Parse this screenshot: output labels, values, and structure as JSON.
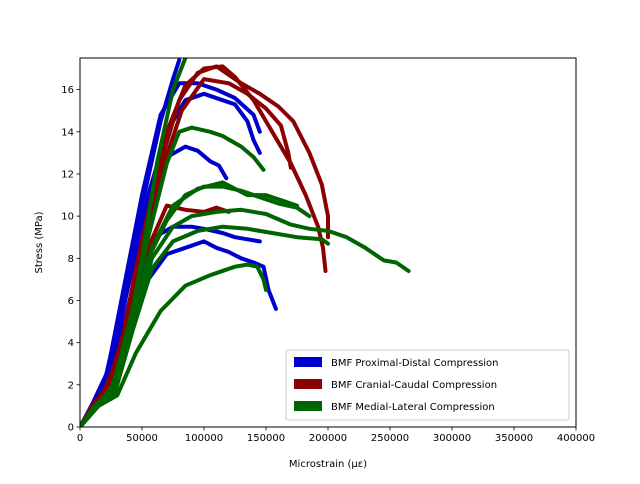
{
  "chart_data": {
    "type": "line",
    "title": "",
    "xlabel": "Microstrain (με)",
    "ylabel": "Stress (MPa)",
    "xlim": [
      0,
      400000
    ],
    "ylim": [
      0,
      17.5
    ],
    "x_ticks": [
      0,
      50000,
      100000,
      150000,
      200000,
      250000,
      300000,
      350000,
      400000
    ],
    "y_ticks": [
      0,
      2,
      4,
      6,
      8,
      10,
      12,
      14,
      16
    ],
    "grid": false,
    "legend_position": "lower-right",
    "groups": [
      {
        "name": "BMF Proximal-Distal Compression",
        "color": "#0000cd",
        "curves": [
          [
            [
              0,
              0
            ],
            [
              10000,
              1.0
            ],
            [
              20000,
              2.2
            ],
            [
              35000,
              6
            ],
            [
              50000,
              10.5
            ],
            [
              65000,
              14.5
            ],
            [
              75000,
              16.5
            ],
            [
              80000,
              17.4
            ]
          ],
          [
            [
              0,
              0
            ],
            [
              10000,
              1.1
            ],
            [
              22000,
              2.6
            ],
            [
              35000,
              6.5
            ],
            [
              50000,
              11
            ],
            [
              65000,
              14.8
            ],
            [
              80000,
              16.3
            ],
            [
              95000,
              16.3
            ],
            [
              110000,
              16.0
            ],
            [
              125000,
              15.6
            ],
            [
              140000,
              14.8
            ],
            [
              145000,
              14.0
            ]
          ],
          [
            [
              0,
              0
            ],
            [
              12000,
              1.0
            ],
            [
              25000,
              2.8
            ],
            [
              40000,
              7
            ],
            [
              55000,
              11
            ],
            [
              70000,
              14
            ],
            [
              85000,
              15.5
            ],
            [
              100000,
              15.8
            ],
            [
              115000,
              15.5
            ],
            [
              125000,
              15.3
            ],
            [
              135000,
              14.5
            ],
            [
              140000,
              13.6
            ],
            [
              145000,
              13.0
            ]
          ],
          [
            [
              0,
              0
            ],
            [
              12000,
              1.0
            ],
            [
              25000,
              3
            ],
            [
              40000,
              7
            ],
            [
              55000,
              10.5
            ],
            [
              70000,
              12.8
            ],
            [
              85000,
              13.3
            ],
            [
              95000,
              13.1
            ],
            [
              105000,
              12.6
            ],
            [
              112000,
              12.4
            ],
            [
              118000,
              11.8
            ]
          ],
          [
            [
              0,
              0
            ],
            [
              14000,
              1.0
            ],
            [
              28000,
              3
            ],
            [
              40000,
              6
            ],
            [
              50000,
              8
            ],
            [
              60000,
              9
            ],
            [
              75000,
              9.5
            ],
            [
              90000,
              9.5
            ],
            [
              100000,
              9.4
            ],
            [
              115000,
              9.2
            ],
            [
              125000,
              9.0
            ],
            [
              135000,
              8.9
            ],
            [
              145000,
              8.8
            ]
          ],
          [
            [
              0,
              0
            ],
            [
              14000,
              1.0
            ],
            [
              28000,
              2.8
            ],
            [
              40000,
              5
            ],
            [
              55000,
              7
            ],
            [
              70000,
              8.2
            ],
            [
              85000,
              8.5
            ],
            [
              100000,
              8.8
            ],
            [
              110000,
              8.5
            ],
            [
              120000,
              8.3
            ],
            [
              130000,
              8.0
            ],
            [
              140000,
              7.8
            ],
            [
              148000,
              7.6
            ],
            [
              152000,
              6.5
            ],
            [
              158000,
              5.6
            ]
          ]
        ]
      },
      {
        "name": "BMF Cranial-Caudal Compression",
        "color": "#8b0000",
        "curves": [
          [
            [
              0,
              0
            ],
            [
              10000,
              1.0
            ],
            [
              20000,
              1.8
            ],
            [
              32000,
              3.5
            ],
            [
              45000,
              7.5
            ],
            [
              58000,
              11
            ],
            [
              70000,
              14
            ],
            [
              85000,
              16.2
            ],
            [
              100000,
              17.0
            ],
            [
              115000,
              17.1
            ],
            [
              125000,
              16.6
            ],
            [
              140000,
              15.5
            ],
            [
              155000,
              14
            ],
            [
              170000,
              12.5
            ],
            [
              182000,
              11
            ],
            [
              192000,
              9.5
            ],
            [
              196000,
              8.5
            ],
            [
              198000,
              7.4
            ]
          ],
          [
            [
              0,
              0
            ],
            [
              10000,
              1.0
            ],
            [
              22000,
              1.9
            ],
            [
              35000,
              4
            ],
            [
              50000,
              8.5
            ],
            [
              65000,
              12.5
            ],
            [
              80000,
              15.5
            ],
            [
              95000,
              16.8
            ],
            [
              110000,
              17.1
            ],
            [
              130000,
              16.3
            ],
            [
              145000,
              15.8
            ],
            [
              160000,
              15.2
            ],
            [
              172000,
              14.5
            ],
            [
              185000,
              13
            ],
            [
              195000,
              11.5
            ],
            [
              200000,
              10
            ],
            [
              200000,
              9
            ]
          ],
          [
            [
              0,
              0
            ],
            [
              11000,
              1.0
            ],
            [
              23000,
              2.0
            ],
            [
              38000,
              5
            ],
            [
              52000,
              9
            ],
            [
              68000,
              12.5
            ],
            [
              82000,
              15
            ],
            [
              100000,
              16.5
            ],
            [
              120000,
              16.3
            ],
            [
              135000,
              15.8
            ],
            [
              150000,
              15.1
            ],
            [
              162000,
              14.3
            ],
            [
              168000,
              13.0
            ],
            [
              170000,
              12.3
            ]
          ],
          [
            [
              0,
              0
            ],
            [
              12000,
              1.0
            ],
            [
              25000,
              2.2
            ],
            [
              40000,
              5
            ],
            [
              55000,
              8.5
            ],
            [
              70000,
              10.5
            ],
            [
              85000,
              10.3
            ],
            [
              100000,
              10.2
            ],
            [
              110000,
              10.4
            ],
            [
              120000,
              10.2
            ]
          ]
        ]
      },
      {
        "name": "BMF Medial-Lateral Compression",
        "color": "#006400",
        "curves": [
          [
            [
              0,
              0
            ],
            [
              12000,
              1.0
            ],
            [
              25000,
              1.8
            ],
            [
              38000,
              4
            ],
            [
              50000,
              8
            ],
            [
              62000,
              12.5
            ],
            [
              75000,
              16
            ],
            [
              85000,
              17.5
            ]
          ],
          [
            [
              0,
              0
            ],
            [
              12000,
              1.0
            ],
            [
              25000,
              1.6
            ],
            [
              40000,
              5
            ],
            [
              55000,
              9
            ],
            [
              70000,
              12.5
            ],
            [
              80000,
              14
            ],
            [
              90000,
              14.2
            ],
            [
              105000,
              14
            ],
            [
              115000,
              13.8
            ],
            [
              130000,
              13.3
            ],
            [
              140000,
              12.8
            ],
            [
              148000,
              12.2
            ]
          ],
          [
            [
              0,
              0
            ],
            [
              13000,
              1.0
            ],
            [
              27000,
              1.6
            ],
            [
              42000,
              5
            ],
            [
              55000,
              8
            ],
            [
              70000,
              9.8
            ],
            [
              85000,
              11
            ],
            [
              100000,
              11.4
            ],
            [
              115000,
              11.4
            ],
            [
              130000,
              11.2
            ],
            [
              145000,
              10.9
            ],
            [
              160000,
              10.6
            ],
            [
              175000,
              10.4
            ],
            [
              185000,
              10
            ]
          ],
          [
            [
              0,
              0
            ],
            [
              14000,
              1.0
            ],
            [
              28000,
              1.6
            ],
            [
              42000,
              4.5
            ],
            [
              58000,
              8
            ],
            [
              75000,
              9.5
            ],
            [
              90000,
              10.0
            ],
            [
              110000,
              10.2
            ],
            [
              130000,
              10.3
            ],
            [
              150000,
              10.1
            ],
            [
              170000,
              9.6
            ],
            [
              185000,
              9.4
            ],
            [
              200000,
              9.3
            ],
            [
              215000,
              9.0
            ],
            [
              230000,
              8.5
            ],
            [
              245000,
              7.9
            ],
            [
              255000,
              7.8
            ],
            [
              265000,
              7.4
            ]
          ],
          [
            [
              0,
              0
            ],
            [
              14000,
              1.0
            ],
            [
              28000,
              1.6
            ],
            [
              42000,
              4.5
            ],
            [
              58000,
              7.5
            ],
            [
              75000,
              8.8
            ],
            [
              95000,
              9.3
            ],
            [
              115000,
              9.5
            ],
            [
              135000,
              9.4
            ],
            [
              155000,
              9.2
            ],
            [
              175000,
              9.0
            ],
            [
              195000,
              8.9
            ],
            [
              200000,
              8.7
            ]
          ],
          [
            [
              0,
              0
            ],
            [
              15000,
              1.0
            ],
            [
              30000,
              1.5
            ],
            [
              45000,
              3.5
            ],
            [
              65000,
              5.5
            ],
            [
              85000,
              6.7
            ],
            [
              105000,
              7.2
            ],
            [
              125000,
              7.6
            ],
            [
              135000,
              7.7
            ],
            [
              143000,
              7.6
            ],
            [
              148000,
              7.0
            ],
            [
              150000,
              6.5
            ]
          ],
          [
            [
              0,
              0
            ],
            [
              14000,
              1.0
            ],
            [
              28000,
              1.6
            ],
            [
              42000,
              4.8
            ],
            [
              58000,
              8.5
            ],
            [
              75000,
              10.5
            ],
            [
              95000,
              11.3
            ],
            [
              115000,
              11.6
            ],
            [
              135000,
              11.0
            ],
            [
              150000,
              11.0
            ],
            [
              165000,
              10.7
            ],
            [
              175000,
              10.5
            ]
          ]
        ]
      }
    ]
  }
}
